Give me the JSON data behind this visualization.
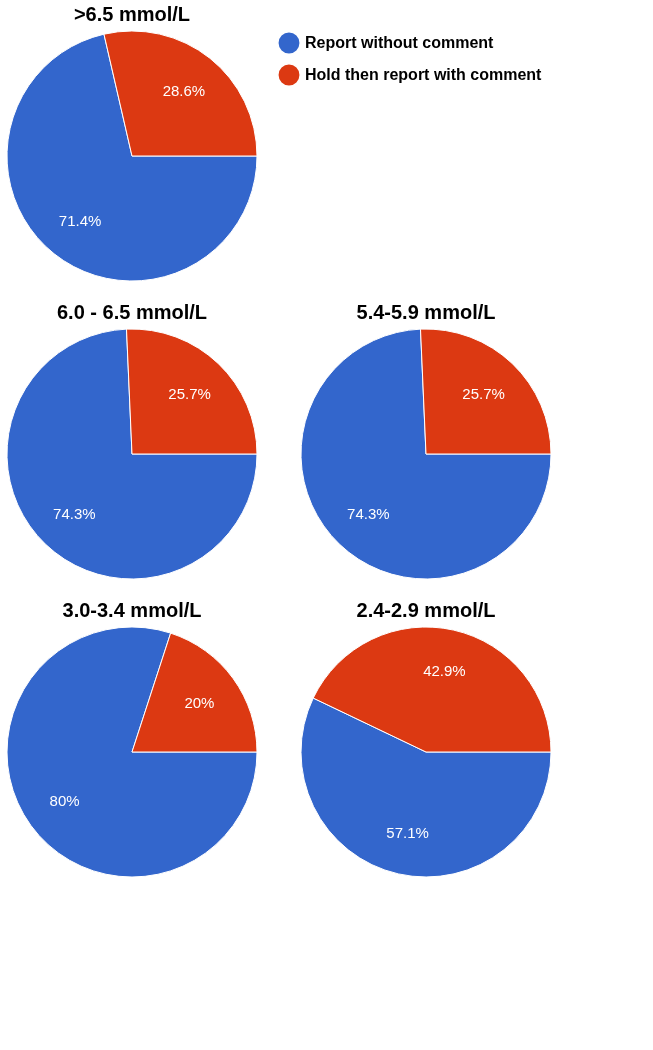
{
  "chart_data": [
    {
      "type": "pie",
      "title": ">6.5 mmol/L",
      "categories": [
        "Report without comment",
        "Hold then report with comment"
      ],
      "values": [
        71.4,
        28.6
      ],
      "colors": [
        "#3366cc",
        "#dc3912"
      ],
      "value_labels": [
        "71.4%",
        "28.6%"
      ],
      "legend": "right"
    },
    {
      "type": "pie",
      "title": "6.0 - 6.5 mmol/L",
      "categories": [
        null,
        null
      ],
      "values": [
        74.3,
        25.7
      ],
      "colors": [
        "#3366cc",
        "#dc3912"
      ],
      "value_labels": [
        "74.3%",
        "25.7%"
      ]
    },
    {
      "type": "pie",
      "title": "5.4-5.9 mmol/L",
      "categories": [
        null,
        null
      ],
      "values": [
        74.3,
        25.7
      ],
      "colors": [
        "#3366cc",
        "#dc3912"
      ],
      "value_labels": [
        "74.3%",
        "25.7%"
      ]
    },
    {
      "type": "pie",
      "title": "3.0-3.4 mmol/L",
      "categories": [
        null,
        null
      ],
      "values": [
        80,
        20
      ],
      "colors": [
        "#3366cc",
        "#dc3912"
      ],
      "value_labels": [
        "80%",
        "20%"
      ]
    },
    {
      "type": "pie",
      "title": "2.4-2.9 mmol/L",
      "categories": [
        null,
        null
      ],
      "values": [
        57.1,
        42.9
      ],
      "colors": [
        "#3366cc",
        "#dc3912"
      ],
      "value_labels": [
        "57.1%",
        "42.9%"
      ]
    }
  ]
}
